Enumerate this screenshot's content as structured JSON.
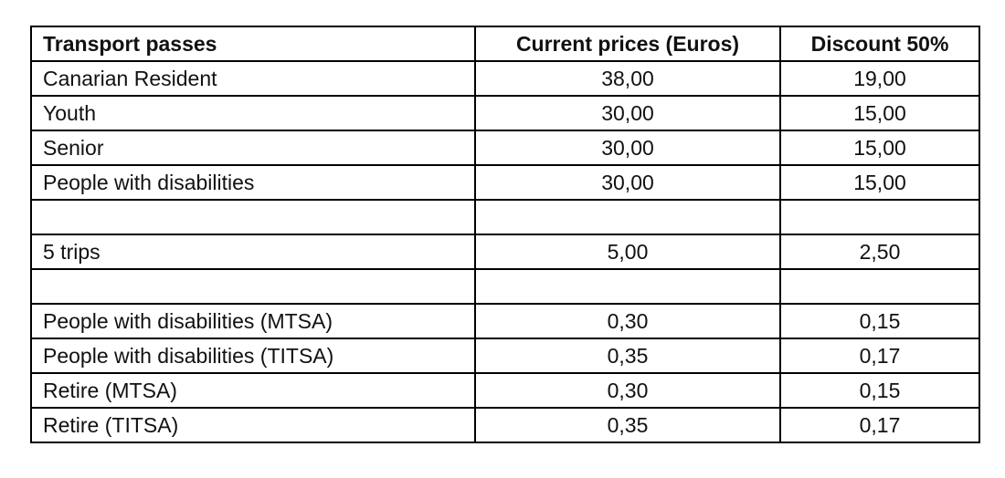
{
  "table": {
    "header": [
      "Transport passes",
      "Current prices (Euros)",
      "Discount 50%"
    ],
    "rows": [
      [
        "Canarian Resident",
        "38,00",
        "19,00"
      ],
      [
        "Youth",
        "30,00",
        "15,00"
      ],
      [
        "Senior",
        "30,00",
        "15,00"
      ],
      [
        "People with disabilities",
        "30,00",
        "15,00"
      ],
      null,
      [
        "5 trips",
        "5,00",
        "2,50"
      ],
      null,
      [
        "People with disabilities (MTSA)",
        "0,30",
        "0,15"
      ],
      [
        "People with disabilities (TITSA)",
        "0,35",
        "0,17"
      ],
      [
        "Retire (MTSA)",
        "0,30",
        "0,15"
      ],
      [
        "Retire (TITSA)",
        "0,35",
        "0,17"
      ]
    ]
  }
}
